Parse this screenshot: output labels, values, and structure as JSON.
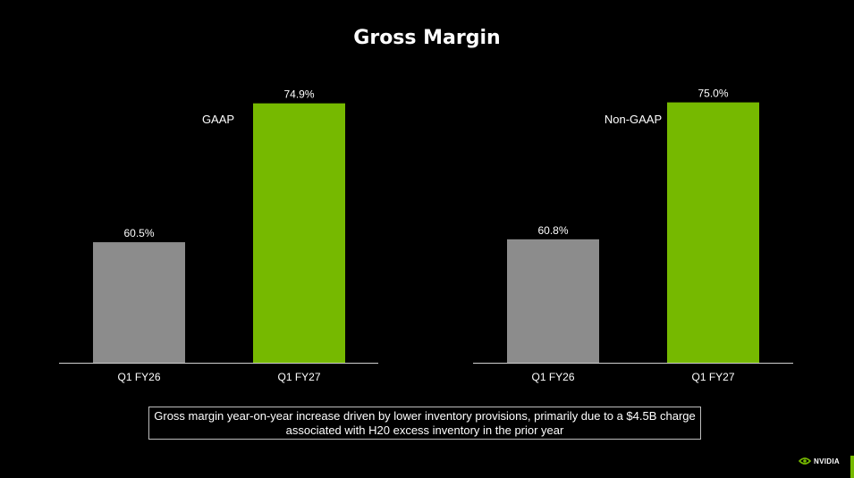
{
  "page": {
    "title": "Gross Margin",
    "note": "Gross margin year-on-year increase driven by lower inventory provisions, primarily due to a $4.5B charge associated with H20 excess inventory in the prior year",
    "logo_text": "NVIDIA"
  },
  "colors": {
    "background": "#000000",
    "prior_year_bar": "#8c8c8c",
    "current_year_bar": "#76b900",
    "text": "#ffffff",
    "axis": "#cfcfcf"
  },
  "chart_data": [
    {
      "type": "bar",
      "title": "GAAP",
      "categories": [
        "Q1 FY26",
        "Q1 FY27"
      ],
      "values": [
        60.5,
        74.9
      ],
      "value_labels": [
        "60.5%",
        "74.9%"
      ],
      "ylim": [
        48,
        77
      ],
      "grid": false
    },
    {
      "type": "bar",
      "title": "Non-GAAP",
      "categories": [
        "Q1 FY26",
        "Q1 FY27"
      ],
      "values": [
        60.8,
        75.0
      ],
      "value_labels": [
        "60.8%",
        "75.0%"
      ],
      "ylim": [
        48,
        77
      ],
      "grid": false
    }
  ]
}
